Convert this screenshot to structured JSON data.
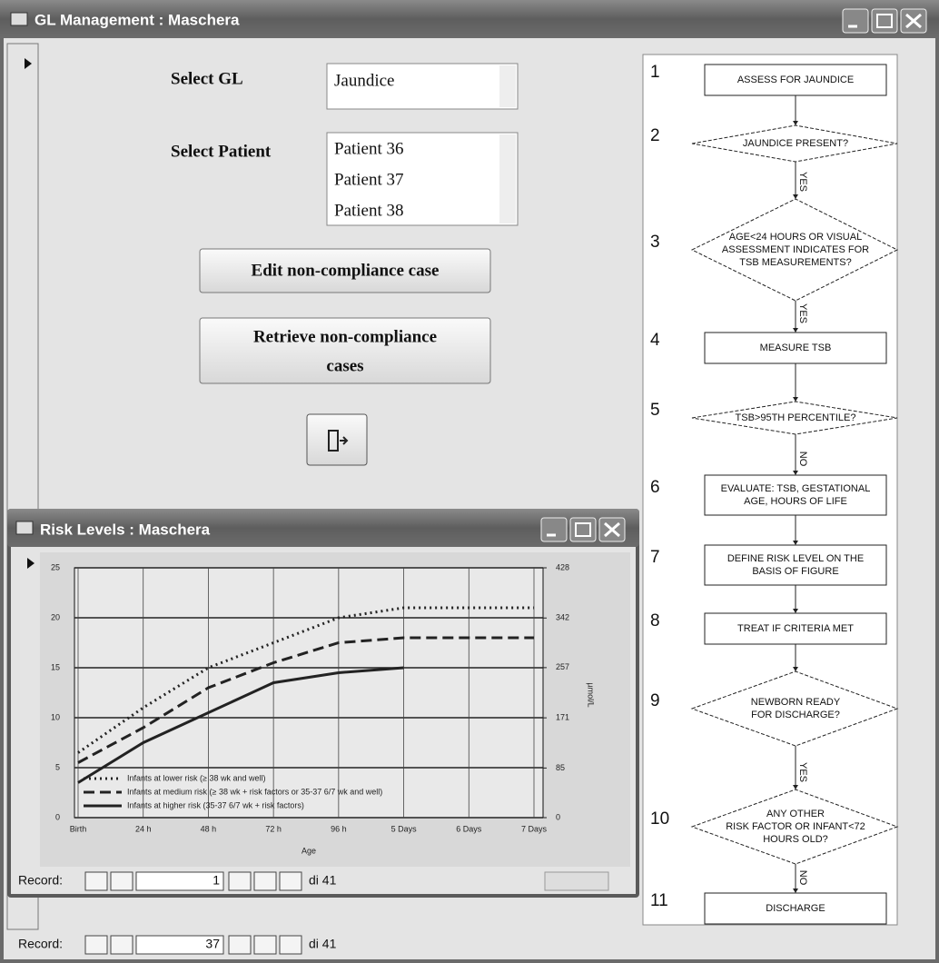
{
  "window": {
    "title": "GL Management : Maschera"
  },
  "form": {
    "select_gl_label": "Select GL",
    "gl_options": [
      "Jaundice"
    ],
    "select_patient_label": "Select Patient",
    "patient_options": [
      "Patient 36",
      "Patient 37",
      "Patient 38"
    ],
    "edit_button": "Edit non-compliance case",
    "retrieve_button": [
      "Retrieve non-compliance",
      "cases"
    ]
  },
  "flowchart": {
    "steps": [
      {
        "number": "1",
        "lines": [
          "ASSESS FOR JAUNDICE"
        ]
      },
      {
        "number": "2",
        "lines": [
          "JAUNDICE PRESENT?"
        ]
      },
      {
        "number": "3",
        "lines": [
          "AGE<24 HOURS OR VISUAL",
          "ASSESSMENT INDICATES FOR",
          "TSB MEASUREMENTS?"
        ]
      },
      {
        "number": "4",
        "lines": [
          "MEASURE TSB"
        ]
      },
      {
        "number": "5",
        "lines": [
          "TSB>95TH PERCENTILE?"
        ]
      },
      {
        "number": "6",
        "lines": [
          "EVALUATE: TSB, GESTATIONAL",
          "AGE, HOURS OF LIFE"
        ]
      },
      {
        "number": "7",
        "lines": [
          "DEFINE RISK LEVEL ON THE",
          "BASIS OF FIGURE"
        ]
      },
      {
        "number": "8",
        "lines": [
          "TREAT IF CRITERIA MET"
        ]
      },
      {
        "number": "9",
        "lines": [
          "NEWBORN READY",
          "FOR DISCHARGE?"
        ]
      },
      {
        "number": "10",
        "lines": [
          "ANY OTHER",
          "RISK FACTOR OR INFANT<72",
          "HOURS OLD?"
        ]
      },
      {
        "number": "11",
        "lines": [
          "DISCHARGE"
        ]
      }
    ],
    "edge_labels": [
      "YES",
      "YES",
      "NO",
      "YES",
      "NO"
    ]
  },
  "risk_window": {
    "title": "Risk Levels : Maschera",
    "record_label": "Record:",
    "record_number": 1,
    "record_total": "di 41"
  },
  "chart_data": {
    "type": "line",
    "x_label": "Age",
    "y2_label": "µmol/L",
    "categories": [
      "Birth",
      "24 h",
      "48 h",
      "72 h",
      "96 h",
      "5 Days",
      "6 Days",
      "7 Days"
    ],
    "ylim": [
      0,
      25
    ],
    "yticks": [
      0,
      5,
      10,
      15,
      20,
      25
    ],
    "y2lim": [
      0,
      428
    ],
    "y2ticks": [
      0,
      85,
      171,
      257,
      342,
      428
    ],
    "grid": true,
    "series": [
      {
        "name": "Infants at lower risk (≥ 38 wk and well)",
        "color": "#222222",
        "line_style": "dotted",
        "values": [
          6.5,
          11,
          15,
          17.5,
          20,
          21,
          21,
          21
        ]
      },
      {
        "name": "Infants at medium risk (≥ 38 wk + risk factors or 35-37 6/7 wk and well)",
        "color": "#222222",
        "line_style": "dashed",
        "values": [
          5.5,
          9,
          13,
          15.5,
          17.5,
          18,
          18,
          18
        ]
      },
      {
        "name": "Infants at higher risk (35-37 6/7 wk + risk factors)",
        "color": "#222222",
        "line_style": "solid",
        "values": [
          3.5,
          7.5,
          10.5,
          13.5,
          14.5,
          15,
          null,
          null
        ]
      }
    ]
  },
  "record_bar": {
    "label": "Record:",
    "number": 37,
    "total": "di 41"
  }
}
